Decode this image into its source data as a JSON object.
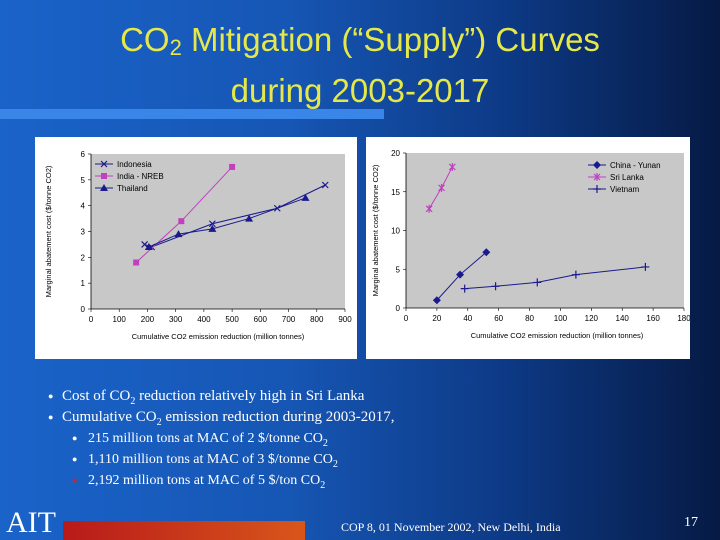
{
  "slide": {
    "title_line1_pre": "CO",
    "title_line1_sub": "2",
    "title_line1_post": " Mitigation (“Supply”) Curves",
    "title_line2": "during 2003-2017",
    "footer": "COP 8, 01 November 2002, New Delhi, India",
    "page_number": "17",
    "logo_text": "AIT",
    "bullets": [
      {
        "pre": "Cost of CO",
        "sub": "2",
        "post": " reduction relatively high in Sri Lanka"
      },
      {
        "pre": "Cumulative CO",
        "sub": "2",
        "post": " emission reduction during 2003-2017,"
      }
    ],
    "sub_bullets": [
      {
        "pre": "215 million tons at MAC of 2 $/tonne CO",
        "sub": "2"
      },
      {
        "pre": "1,110 million tons at MAC of 3 $/tonne CO",
        "sub": "2"
      },
      {
        "pre": "2,192 million tons at MAC of 5 $/ton CO",
        "sub": "2"
      }
    ]
  },
  "chart_data": [
    {
      "type": "line",
      "xlabel": "Cumulative CO2 emission reduction (million tonnes)",
      "ylabel": "Marginal abatement cost ($/tonne CO2)",
      "xlim": [
        0,
        900
      ],
      "ylim": [
        0,
        6
      ],
      "xticks": [
        "0",
        "100",
        "200",
        "300",
        "400",
        "500",
        "600",
        "700",
        "800",
        "900"
      ],
      "yticks": [
        "0",
        "1",
        "2",
        "3",
        "4",
        "5",
        "6"
      ],
      "legend_position": "top-left",
      "series": [
        {
          "name": "Indonesia",
          "marker": "x",
          "color": "#1a1a8c",
          "points": [
            [
              190,
              2.5
            ],
            [
              215,
              2.4
            ],
            [
              430,
              3.3
            ],
            [
              660,
              3.9
            ],
            [
              830,
              4.8
            ]
          ]
        },
        {
          "name": "India - NREB",
          "marker": "square",
          "color": "#c040c0",
          "points": [
            [
              160,
              1.8
            ],
            [
              320,
              3.4
            ],
            [
              500,
              5.5
            ]
          ]
        },
        {
          "name": "Thailand",
          "marker": "triangle",
          "color": "#1a1a8c",
          "points": [
            [
              205,
              2.4
            ],
            [
              310,
              2.9
            ],
            [
              430,
              3.1
            ],
            [
              560,
              3.5
            ],
            [
              760,
              4.3
            ]
          ]
        }
      ]
    },
    {
      "type": "line",
      "xlabel": "Cumulative CO2 emission reduction (million tonnes)",
      "ylabel": "Marginal abatement cost ($/tonne CO2)",
      "xlim": [
        0,
        180
      ],
      "ylim": [
        0,
        20
      ],
      "xticks": [
        "0",
        "20",
        "40",
        "60",
        "80",
        "100",
        "120",
        "140",
        "160",
        "180"
      ],
      "yticks": [
        "0",
        "5",
        "10",
        "15",
        "20"
      ],
      "legend_position": "top-right",
      "series": [
        {
          "name": "China - Yunan",
          "marker": "diamond",
          "color": "#1a1a8c",
          "points": [
            [
              20,
              1.0
            ],
            [
              35,
              4.3
            ],
            [
              52,
              7.2
            ]
          ]
        },
        {
          "name": "Sri Lanka",
          "marker": "asterisk",
          "color": "#c040c0",
          "points": [
            [
              15,
              12.8
            ],
            [
              23,
              15.5
            ],
            [
              30,
              18.2
            ]
          ]
        },
        {
          "name": "Vietnam",
          "marker": "plus",
          "color": "#1a1a8c",
          "points": [
            [
              38,
              2.5
            ],
            [
              58,
              2.8
            ],
            [
              85,
              3.3
            ],
            [
              110,
              4.3
            ],
            [
              155,
              5.3
            ]
          ]
        }
      ]
    }
  ]
}
